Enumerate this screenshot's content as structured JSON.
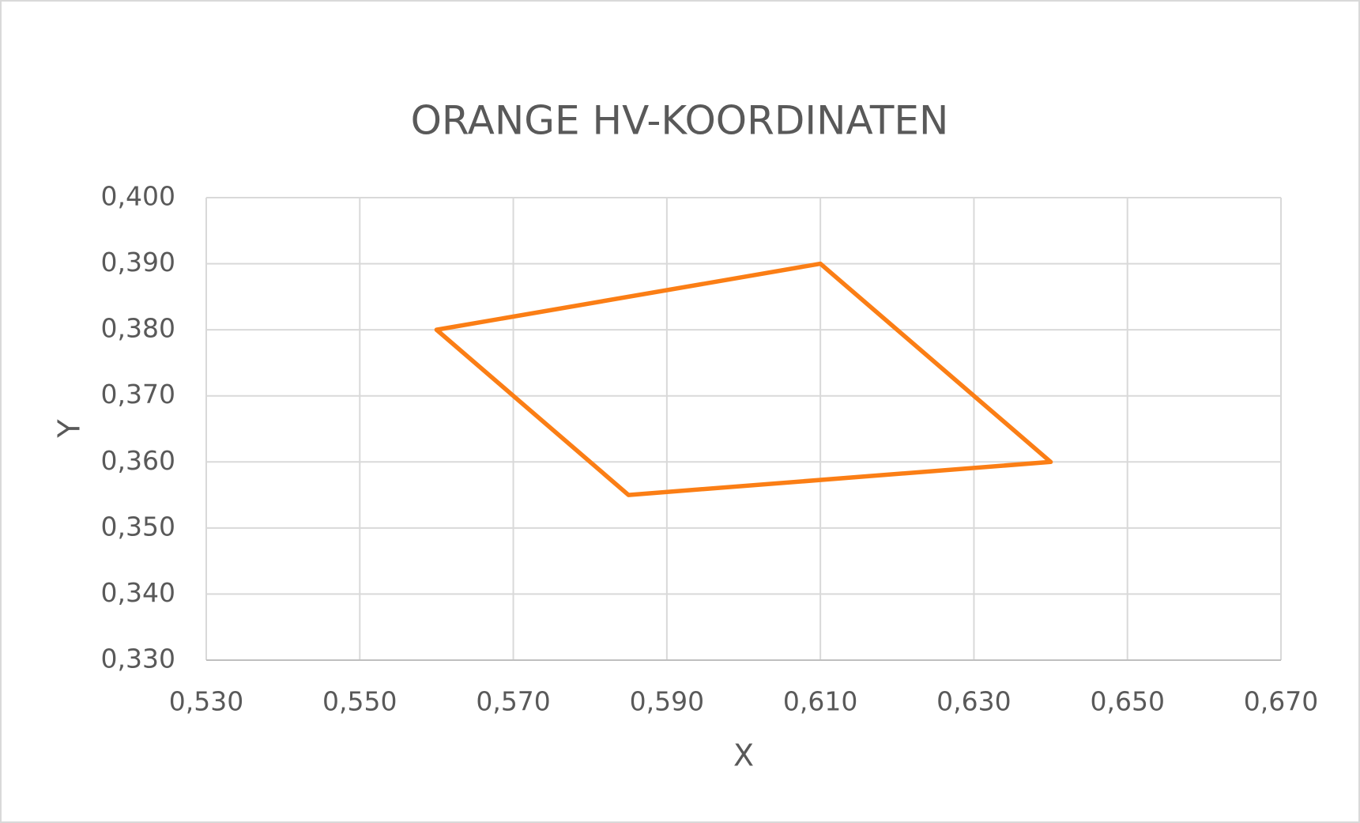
{
  "chart_data": {
    "type": "line",
    "title": "ORANGE HV-KOORDINATEN",
    "x_label": "X",
    "y_label": "Y",
    "x": [
      0.56,
      0.61,
      0.64,
      0.585,
      0.56
    ],
    "series": [
      {
        "color": "#fb7e15",
        "values": [
          0.38,
          0.39,
          0.36,
          0.355,
          0.38
        ]
      }
    ],
    "xlim": [
      0.53,
      0.67
    ],
    "xticks": [
      {
        "value": 0.53,
        "label": "0,530"
      },
      {
        "value": 0.55,
        "label": "0,550"
      },
      {
        "value": 0.57,
        "label": "0,570"
      },
      {
        "value": 0.59,
        "label": "0,590"
      },
      {
        "value": 0.61,
        "label": "0,610"
      },
      {
        "value": 0.63,
        "label": "0,630"
      },
      {
        "value": 0.65,
        "label": "0,650"
      },
      {
        "value": 0.67,
        "label": "0,670"
      }
    ],
    "ylim": [
      0.33,
      0.4
    ],
    "yticks": [
      {
        "value": 0.33,
        "label": "0,330"
      },
      {
        "value": 0.34,
        "label": "0,340"
      },
      {
        "value": 0.35,
        "label": "0,350"
      },
      {
        "value": 0.36,
        "label": "0,360"
      },
      {
        "value": 0.37,
        "label": "0,370"
      },
      {
        "value": 0.38,
        "label": "0,380"
      },
      {
        "value": 0.39,
        "label": "0,390"
      },
      {
        "value": 0.4,
        "label": "0,400"
      }
    ],
    "grid": true
  }
}
